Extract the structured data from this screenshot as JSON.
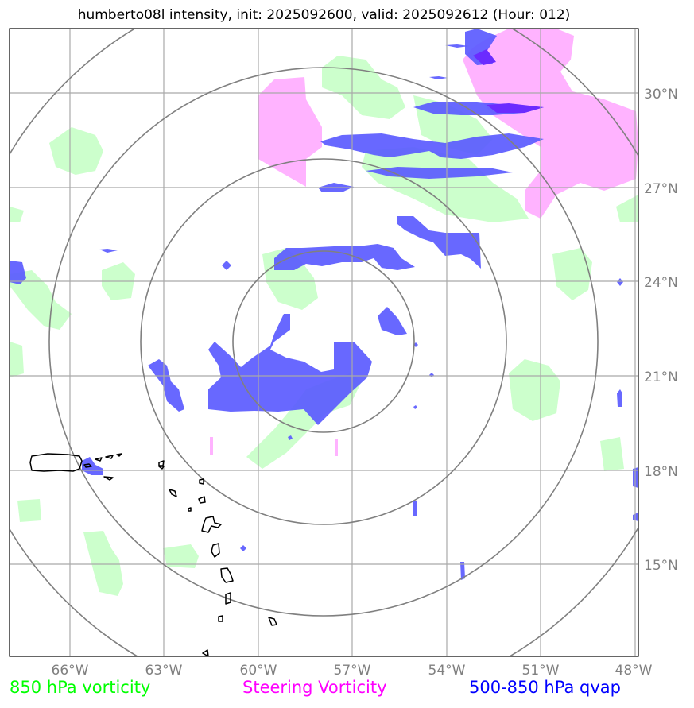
{
  "title": "humberto08l intensity, init: 2025092600, valid: 2025092612 (Hour: 012)",
  "map": {
    "lon_range": [
      -68.5,
      -48
    ],
    "lat_range": [
      12.5,
      32
    ],
    "latitude_labels": [
      "30°N",
      "27°N",
      "24°N",
      "21°N",
      "18°N",
      "15°N"
    ],
    "longitude_labels": [
      "66°W",
      "63°W",
      "60°W",
      "57°W",
      "54°W",
      "51°W",
      "48°W"
    ],
    "gridline_color": "#a9a9a9",
    "range_ring_color": "#808080",
    "colors": {
      "vorticity_850": "#ccffcc",
      "steering_vorticity": "#ffb3ff",
      "qvap_500_850": "#5b5bff",
      "qvap_overlap": "#6b2bff",
      "coastline": "#000000"
    }
  },
  "legend": {
    "vorticity": "850 hPa vorticity",
    "steering": "Steering Vorticity",
    "qvap": "500-850 hPa qvap",
    "vorticity_color": "#00ff00",
    "steering_color": "#ff00ff",
    "qvap_color": "#0000ff"
  }
}
